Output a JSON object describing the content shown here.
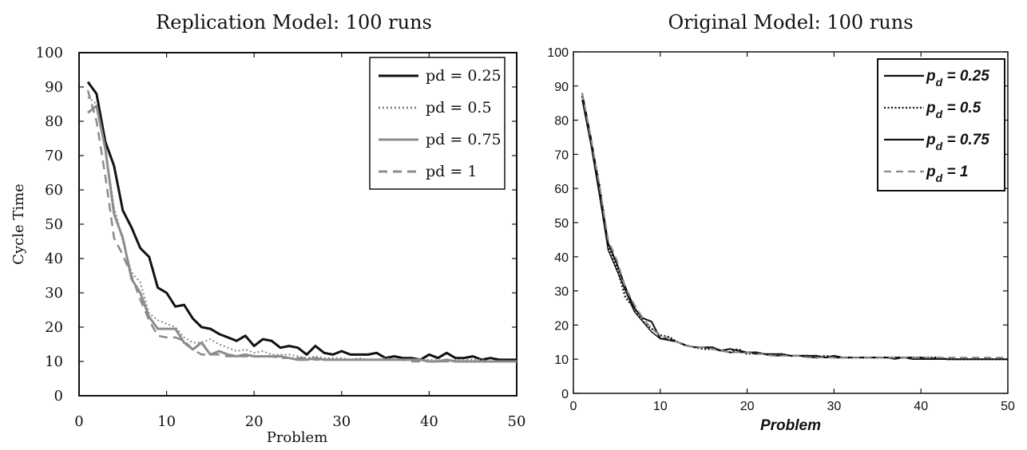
{
  "chart_data": [
    {
      "type": "line",
      "title": "Replication Model: 100 runs",
      "xlabel": "Problem",
      "ylabel": "Cycle Time",
      "xlim": [
        0,
        50
      ],
      "ylim": [
        0,
        100
      ],
      "xticks": [
        "0",
        "10",
        "20",
        "30",
        "40",
        "50"
      ],
      "yticks": [
        "0",
        "10",
        "20",
        "30",
        "40",
        "50",
        "60",
        "70",
        "80",
        "90",
        "100"
      ],
      "legend_position": "top-right",
      "series": [
        {
          "name": "pd = 0.25",
          "color": "#111111",
          "style": "solid",
          "x": [
            1,
            2,
            3,
            4,
            5,
            6,
            7,
            8,
            9,
            10,
            11,
            12,
            13,
            14,
            15,
            16,
            17,
            18,
            19,
            20,
            21,
            22,
            23,
            24,
            25,
            26,
            27,
            28,
            29,
            30,
            31,
            32,
            33,
            34,
            35,
            36,
            37,
            38,
            39,
            40,
            41,
            42,
            43,
            44,
            45,
            46,
            47,
            48,
            49,
            50
          ],
          "y": [
            91.5,
            88,
            74,
            67,
            54,
            49,
            43,
            40.5,
            31.5,
            30,
            26,
            26.5,
            22.5,
            20,
            19.5,
            18,
            17,
            16,
            17.5,
            14.5,
            16.5,
            16,
            14,
            14.5,
            14,
            12,
            14.5,
            12.5,
            12,
            13,
            12,
            12,
            12,
            12.5,
            11,
            11.5,
            11,
            11,
            10.5,
            12,
            11,
            12.5,
            11,
            11,
            11.5,
            10.5,
            11,
            10.5,
            10.5,
            10.5
          ]
        },
        {
          "name": "pd = 0.5",
          "color": "#888888",
          "style": "dotted",
          "x": [
            1,
            2,
            3,
            4,
            5,
            6,
            7,
            8,
            9,
            10,
            11,
            12,
            13,
            14,
            15,
            16,
            17,
            18,
            19,
            20,
            21,
            22,
            23,
            24,
            25,
            26,
            27,
            28,
            29,
            30,
            31,
            32,
            33,
            34,
            35,
            36,
            37,
            38,
            39,
            40,
            41,
            42,
            43,
            44,
            45,
            46,
            47,
            48,
            49,
            50
          ],
          "y": [
            87,
            85,
            72,
            55,
            45,
            36,
            33,
            24,
            22,
            21,
            20,
            17,
            15.5,
            15.5,
            16.5,
            15,
            14,
            13,
            13.5,
            12.5,
            13,
            12,
            12,
            12,
            11.5,
            11,
            11.5,
            11,
            11,
            11,
            10.5,
            11,
            10.5,
            10.5,
            11,
            10.5,
            10.5,
            10.5,
            10.5,
            10.5,
            10.5,
            10,
            10.5,
            10.5,
            10.5,
            10.5,
            10,
            10,
            10,
            10
          ]
        },
        {
          "name": "pd = 0.75",
          "color": "#8c8c8c",
          "style": "solid",
          "x": [
            1,
            2,
            3,
            4,
            5,
            6,
            7,
            8,
            9,
            10,
            11,
            12,
            13,
            14,
            15,
            16,
            17,
            18,
            19,
            20,
            21,
            22,
            23,
            24,
            25,
            26,
            27,
            28,
            29,
            30,
            31,
            32,
            33,
            34,
            35,
            36,
            37,
            38,
            39,
            40,
            41,
            42,
            43,
            44,
            45,
            46,
            47,
            48,
            49,
            50
          ],
          "y": [
            82.5,
            84.5,
            72,
            53,
            46,
            34,
            30,
            23,
            19.5,
            19.5,
            19.5,
            15.5,
            13.5,
            15.5,
            12,
            13,
            12,
            11.5,
            12,
            11.5,
            11.5,
            11.5,
            11.5,
            11,
            10.5,
            10.5,
            11,
            10.5,
            10.5,
            10.5,
            10.5,
            10.5,
            10.5,
            10.5,
            10.5,
            10.5,
            10.5,
            10.5,
            10.5,
            10,
            10,
            10.5,
            10,
            10,
            10,
            10,
            10,
            10,
            10,
            10
          ]
        },
        {
          "name": "pd = 1",
          "color": "#8c8c8c",
          "style": "dashed",
          "x": [
            1,
            2,
            3,
            4,
            5,
            6,
            7,
            8,
            9,
            10,
            11,
            12,
            13,
            14,
            15,
            16,
            17,
            18,
            19,
            20,
            21,
            22,
            23,
            24,
            25,
            26,
            27,
            28,
            29,
            30,
            31,
            32,
            33,
            34,
            35,
            36,
            37,
            38,
            39,
            40,
            41,
            42,
            43,
            44,
            45,
            46,
            47,
            48,
            49,
            50
          ],
          "y": [
            89,
            80,
            64,
            46,
            41,
            35,
            28,
            22,
            17.5,
            17,
            17,
            16,
            13.5,
            12,
            12,
            12,
            11.5,
            11.5,
            11.5,
            11.5,
            11.5,
            11.5,
            11,
            11,
            11,
            11,
            10.5,
            10.5,
            10.5,
            10.5,
            10.5,
            10.5,
            10.5,
            10.5,
            10.5,
            10.5,
            10.5,
            10,
            10,
            10,
            10,
            10,
            10,
            10,
            10,
            10,
            10,
            10,
            10,
            10
          ]
        }
      ]
    },
    {
      "type": "line",
      "title": "Original Model: 100 runs",
      "xlabel": "Problem",
      "ylabel": "",
      "xlim": [
        0,
        50
      ],
      "ylim": [
        0,
        100
      ],
      "xticks": [
        "0",
        "10",
        "20",
        "30",
        "40",
        "50"
      ],
      "yticks": [
        "0",
        "10",
        "20",
        "30",
        "40",
        "50",
        "60",
        "70",
        "80",
        "90",
        "100"
      ],
      "legend_position": "top-right",
      "series": [
        {
          "name": "p_d = 0.25",
          "legend_base": "p",
          "legend_sub": "d",
          "legend_rest": " = 0.25",
          "color": "#111111",
          "style": "solid",
          "x": [
            1,
            2,
            3,
            4,
            5,
            6,
            7,
            8,
            9,
            10,
            11,
            12,
            13,
            14,
            15,
            16,
            17,
            18,
            19,
            20,
            21,
            22,
            23,
            24,
            25,
            26,
            27,
            28,
            29,
            30,
            31,
            32,
            33,
            34,
            35,
            36,
            37,
            38,
            39,
            40,
            41,
            42,
            43,
            44,
            45,
            46,
            47,
            48,
            49,
            50
          ],
          "y": [
            88,
            75,
            60,
            44,
            38,
            31,
            25,
            22,
            21,
            16,
            16,
            15,
            14,
            13.5,
            13.5,
            13.5,
            12.5,
            13,
            12.5,
            12,
            12,
            11.5,
            11.5,
            11.5,
            11,
            11,
            11,
            11,
            10.5,
            11,
            10.5,
            10.5,
            10.5,
            10.5,
            10.5,
            10.5,
            10.5,
            10.5,
            10.5,
            10.5,
            10,
            10.5,
            10,
            10,
            10,
            10,
            10,
            10,
            10,
            10
          ]
        },
        {
          "name": "p_d = 0.5",
          "legend_base": "p",
          "legend_sub": "d",
          "legend_rest": " = 0.5",
          "color": "#111111",
          "style": "dotted",
          "x": [
            1,
            2,
            3,
            4,
            5,
            6,
            7,
            8,
            9,
            10,
            11,
            12,
            13,
            14,
            15,
            16,
            17,
            18,
            19,
            20,
            21,
            22,
            23,
            24,
            25,
            26,
            27,
            28,
            29,
            30,
            31,
            32,
            33,
            34,
            35,
            36,
            37,
            38,
            39,
            40,
            41,
            42,
            43,
            44,
            45,
            46,
            47,
            48,
            49,
            50
          ],
          "y": [
            87,
            74,
            61,
            43,
            37,
            28,
            25,
            21,
            19,
            17,
            16.5,
            15,
            14,
            13.5,
            13,
            13,
            12.5,
            12,
            13,
            11.5,
            12,
            11.5,
            11,
            11.5,
            11,
            11,
            11,
            10.5,
            11,
            10.5,
            10.5,
            10.5,
            10.5,
            10.5,
            10.5,
            10.5,
            10.5,
            10.5,
            10.5,
            10.5,
            10.5,
            10.5,
            10,
            10,
            10,
            10,
            10,
            10,
            10,
            10
          ]
        },
        {
          "name": "p_d = 0.75",
          "legend_base": "p",
          "legend_sub": "d",
          "legend_rest": " = 0.75",
          "color": "#111111",
          "style": "solid",
          "x": [
            1,
            2,
            3,
            4,
            5,
            6,
            7,
            8,
            9,
            10,
            11,
            12,
            13,
            14,
            15,
            16,
            17,
            18,
            19,
            20,
            21,
            22,
            23,
            24,
            25,
            26,
            27,
            28,
            29,
            30,
            31,
            32,
            33,
            34,
            35,
            36,
            37,
            38,
            39,
            40,
            41,
            42,
            43,
            44,
            45,
            46,
            47,
            48,
            49,
            50
          ],
          "y": [
            86,
            73,
            58,
            42,
            36,
            30,
            24,
            21,
            18,
            16,
            15.5,
            15,
            14,
            13.5,
            13.5,
            13,
            12.5,
            12,
            12,
            12,
            11.5,
            11.5,
            11,
            11,
            11,
            11,
            10.5,
            10.5,
            10.5,
            10.5,
            10.5,
            10.5,
            10.5,
            10.5,
            10.5,
            10.5,
            10,
            10.5,
            10,
            10,
            10,
            10,
            10,
            10,
            10,
            10,
            10,
            10,
            10,
            10
          ]
        },
        {
          "name": "p_d = 1",
          "legend_base": "p",
          "legend_sub": "d",
          "legend_rest": " = 1",
          "color": "#8a8a8a",
          "style": "dashed",
          "x": [
            1,
            2,
            3,
            4,
            5,
            6,
            7,
            8,
            9,
            10,
            11,
            12,
            13,
            14,
            15,
            16,
            17,
            18,
            19,
            20,
            21,
            22,
            23,
            24,
            25,
            26,
            27,
            28,
            29,
            30,
            31,
            32,
            33,
            34,
            35,
            36,
            37,
            38,
            39,
            40,
            41,
            42,
            43,
            44,
            45,
            46,
            47,
            48,
            49,
            50
          ],
          "y": [
            88,
            75,
            61,
            45,
            39,
            31,
            26,
            22,
            19,
            17,
            16,
            15,
            14,
            13.5,
            13.5,
            13,
            12.5,
            12,
            12,
            12,
            11.5,
            11.5,
            11,
            11,
            11,
            11,
            10.5,
            10.5,
            10.5,
            10.5,
            10.5,
            10.5,
            10.5,
            10.5,
            10.5,
            10.5,
            10.5,
            10.5,
            10.5,
            10.5,
            10.5,
            10.5,
            10.5,
            10.5,
            10.5,
            10.5,
            10.5,
            10.5,
            10.5,
            10.5
          ]
        }
      ]
    }
  ]
}
